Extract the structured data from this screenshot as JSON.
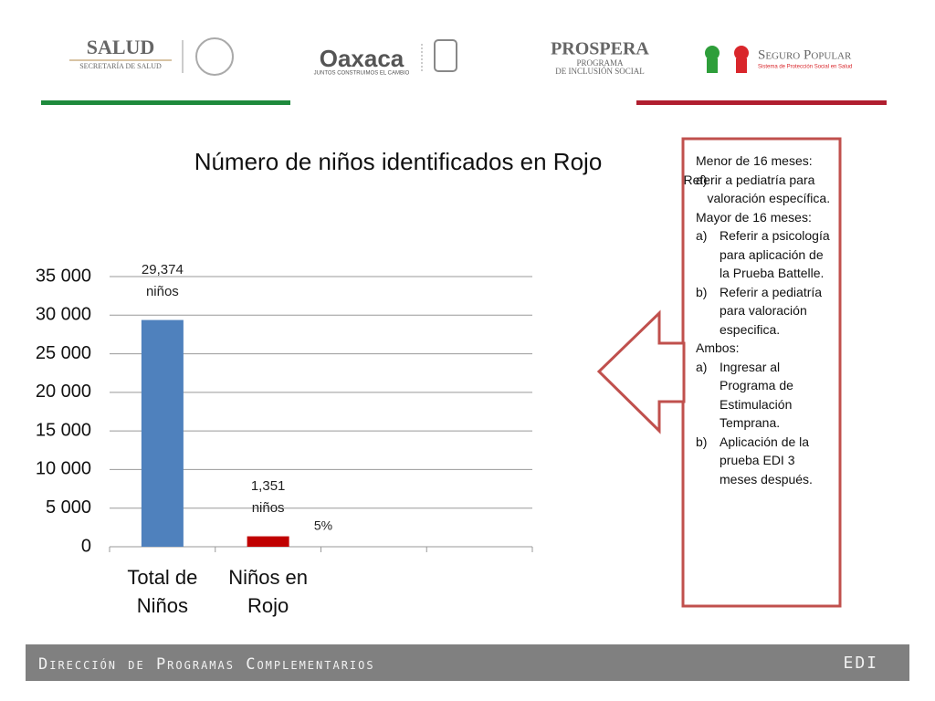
{
  "logos": {
    "salud": "SALUD",
    "salud_sub": "SECRETARÍA DE SALUD",
    "oaxaca": "Oaxaca",
    "oaxaca_sub": "JUNTOS CONSTRUIMOS EL CAMBIO",
    "prospera": "PROSPERA",
    "prospera_sub1": "PROGRAMA",
    "prospera_sub2": "DE INCLUSIÓN SOCIAL",
    "seguro": "Seguro Popular",
    "seguro_sub": "Sistema de Protección Social en Salud"
  },
  "chart_data": {
    "type": "bar",
    "title": "Número de niños identificados en Rojo",
    "categories": [
      "Total de Niños",
      "Niños en Rojo",
      null,
      null
    ],
    "values": [
      29374,
      1351,
      null,
      null
    ],
    "value_labels": [
      "29,374 niños",
      "1,351 niños",
      null,
      null
    ],
    "colors": [
      "#4f81bd",
      "#c00000",
      null,
      null
    ],
    "annotations": [
      "5%"
    ],
    "ylim": [
      0,
      35000
    ],
    "yticks": [
      0,
      {
        "value": 5000,
        "label": "5 000"
      },
      {
        "value": 10000,
        "label": "10 000"
      },
      {
        "value": 15000,
        "label": "15 000"
      },
      {
        "value": 20000,
        "label": "20 000"
      },
      {
        "value": 25000,
        "label": "25 000"
      },
      {
        "value": 30000,
        "label": "30 000"
      },
      {
        "value": 35000,
        "label": "35 000"
      }
    ],
    "grid": true
  },
  "note": {
    "sections": [
      {
        "heading": "Menor de 16 meses:",
        "items": [
          {
            "marker": "a)",
            "text": "Referir a pediatría para valoración específica."
          }
        ]
      },
      {
        "heading": "Mayor de 16 meses:",
        "items": [
          {
            "marker": "a)",
            "text": "Referir a psicología para aplicación de la Prueba Battelle."
          },
          {
            "marker": "b)",
            "text": "Referir a pediatría para valoración especifica."
          }
        ]
      },
      {
        "heading": "Ambos:",
        "items": [
          {
            "marker": "a)",
            "text": "Ingresar al Programa de Estimulación Temprana."
          },
          {
            "marker": "b)",
            "text": "Aplicación de la prueba EDI 3 meses después."
          }
        ]
      }
    ]
  },
  "footer": {
    "left": "Dirección de Programas Complementarios",
    "right": "EDI"
  }
}
